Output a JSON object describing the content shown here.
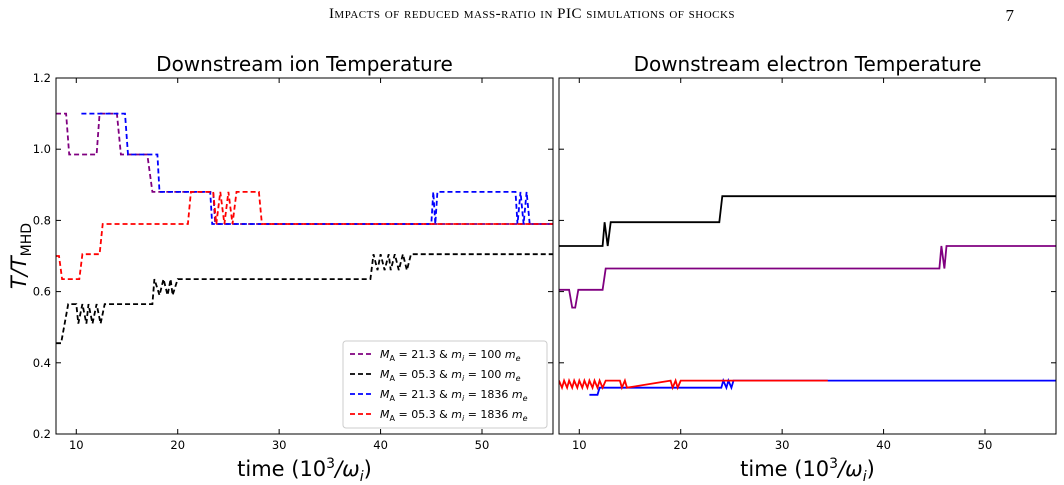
{
  "header": {
    "title": "Impacts of reduced mass-ratio in PIC simulations of shocks",
    "page_number": "7"
  },
  "colors": {
    "purple": "#800080",
    "black": "#000000",
    "blue": "#0000ff",
    "red": "#ff0000"
  },
  "legend": [
    {
      "label_pre": "M",
      "label_sub": "A",
      "label_mid": " = 21.3 & m",
      "label_sub2": "i",
      "label_post": " = 100    m",
      "label_sub3": "e",
      "color": "#800080"
    },
    {
      "label_pre": "M",
      "label_sub": "A",
      "label_mid": " = 05.3 & m",
      "label_sub2": "i",
      "label_post": " = 100    m",
      "label_sub3": "e",
      "color": "#000000"
    },
    {
      "label_pre": "M",
      "label_sub": "A",
      "label_mid": " = 21.3 & m",
      "label_sub2": "i",
      "label_post": " = 1836 m",
      "label_sub3": "e",
      "color": "#0000ff"
    },
    {
      "label_pre": "M",
      "label_sub": "A",
      "label_mid": " = 05.3 & m",
      "label_sub2": "i",
      "label_post": " = 1836 m",
      "label_sub3": "e",
      "color": "#ff0000"
    }
  ],
  "chart_data": [
    {
      "type": "line",
      "title": "Downstream ion Temperature",
      "xlabel": "time (10³/ωᵢ)",
      "ylabel": "T/T_MHD",
      "xlim": [
        8,
        57
      ],
      "ylim": [
        0.2,
        1.2
      ],
      "xticks": [
        10,
        20,
        30,
        40,
        50
      ],
      "yticks": [
        0.2,
        0.4,
        0.6,
        0.8,
        1.0,
        1.2
      ],
      "ytick_labels": [
        "0.2",
        "0.4",
        "0.6",
        "0.8",
        "1.0",
        "1.2"
      ],
      "line_style": "dashed",
      "legend_position": "lower-right",
      "series": [
        {
          "color_key": "purple",
          "x": [
            8,
            9,
            9.3,
            12,
            12.3,
            14,
            14.4,
            17,
            17.5,
            23.5,
            23.7,
            57
          ],
          "y": [
            1.1,
            1.1,
            0.985,
            0.985,
            1.1,
            1.1,
            0.985,
            0.985,
            0.88,
            0.88,
            0.79,
            0.79
          ]
        },
        {
          "color_key": "black",
          "x": [
            8,
            8.5,
            9.2,
            10,
            10.2,
            10.6,
            11,
            11.2,
            11.6,
            12,
            12.4,
            12.8,
            17.5,
            17.7,
            18.2,
            18.6,
            19,
            19.3,
            19.5,
            20,
            39,
            39.3,
            39.7,
            40,
            40.4,
            40.8,
            41,
            41.4,
            41.8,
            42.2,
            42.6,
            43,
            43.3,
            57
          ],
          "y": [
            0.455,
            0.455,
            0.565,
            0.565,
            0.51,
            0.565,
            0.51,
            0.565,
            0.51,
            0.565,
            0.51,
            0.565,
            0.565,
            0.635,
            0.59,
            0.635,
            0.59,
            0.635,
            0.59,
            0.635,
            0.635,
            0.705,
            0.66,
            0.705,
            0.66,
            0.705,
            0.66,
            0.705,
            0.66,
            0.705,
            0.66,
            0.705,
            0.705,
            0.705
          ]
        },
        {
          "color_key": "blue",
          "x": [
            10.5,
            14.8,
            15.1,
            18.0,
            18.2,
            23.2,
            23.4,
            45.0,
            45.2,
            45.4,
            45.6,
            53.3,
            53.5,
            53.8,
            54.1,
            54.4,
            54.7,
            57
          ],
          "y": [
            1.1,
            1.1,
            0.985,
            0.985,
            0.88,
            0.88,
            0.79,
            0.79,
            0.88,
            0.79,
            0.88,
            0.88,
            0.79,
            0.88,
            0.79,
            0.88,
            0.79,
            0.79
          ]
        },
        {
          "color_key": "red",
          "x": [
            8,
            8.3,
            8.6,
            10.3,
            10.6,
            12.3,
            12.6,
            21,
            21.3,
            23.5,
            23.8,
            24.2,
            24.6,
            25,
            25.4,
            25.8,
            26,
            28.0,
            28.3,
            57
          ],
          "y": [
            0.7,
            0.7,
            0.635,
            0.635,
            0.705,
            0.705,
            0.79,
            0.79,
            0.88,
            0.88,
            0.79,
            0.88,
            0.79,
            0.88,
            0.79,
            0.88,
            0.88,
            0.88,
            0.79,
            0.79
          ]
        }
      ]
    },
    {
      "type": "line",
      "title": "Downstream electron Temperature",
      "xlabel": "time (10³/ωᵢ)",
      "ylabel": "",
      "xlim": [
        8,
        57
      ],
      "ylim": [
        0.2,
        1.2
      ],
      "xticks": [
        10,
        20,
        30,
        40,
        50
      ],
      "yticks": [
        0.2,
        0.4,
        0.6,
        0.8,
        1.0,
        1.2
      ],
      "ytick_labels": [],
      "line_style": "solid",
      "series": [
        {
          "color_key": "black",
          "x": [
            8,
            12.3,
            12.5,
            12.8,
            13.1,
            23.8,
            24.1,
            57
          ],
          "y": [
            0.728,
            0.728,
            0.795,
            0.728,
            0.795,
            0.795,
            0.868,
            0.868
          ]
        },
        {
          "color_key": "purple",
          "x": [
            8,
            9,
            9.3,
            9.6,
            9.9,
            12.3,
            12.6,
            45.5,
            45.7,
            46.0,
            46.2,
            57
          ],
          "y": [
            0.605,
            0.605,
            0.555,
            0.555,
            0.605,
            0.605,
            0.665,
            0.665,
            0.728,
            0.665,
            0.728,
            0.728
          ]
        },
        {
          "color_key": "blue",
          "x": [
            11,
            11.8,
            12,
            24.0,
            24.2,
            24.5,
            24.7,
            25.0,
            25.2,
            57
          ],
          "y": [
            0.31,
            0.31,
            0.33,
            0.33,
            0.35,
            0.33,
            0.35,
            0.33,
            0.35,
            0.35
          ]
        },
        {
          "color_key": "red",
          "x": [
            8,
            8.3,
            8.5,
            8.8,
            9.0,
            9.3,
            9.5,
            9.8,
            10.0,
            10.3,
            10.5,
            10.8,
            11.0,
            11.3,
            11.5,
            11.8,
            12.0,
            12.3,
            12.6,
            14.0,
            14.2,
            14.5,
            14.7,
            19.0,
            19.2,
            19.5,
            19.7,
            20.0,
            20.2,
            34.5
          ],
          "y": [
            0.35,
            0.33,
            0.35,
            0.33,
            0.35,
            0.33,
            0.35,
            0.33,
            0.35,
            0.33,
            0.35,
            0.33,
            0.35,
            0.33,
            0.35,
            0.33,
            0.35,
            0.33,
            0.35,
            0.35,
            0.33,
            0.35,
            0.33,
            0.35,
            0.33,
            0.35,
            0.33,
            0.35,
            0.35,
            0.35
          ]
        }
      ]
    }
  ]
}
